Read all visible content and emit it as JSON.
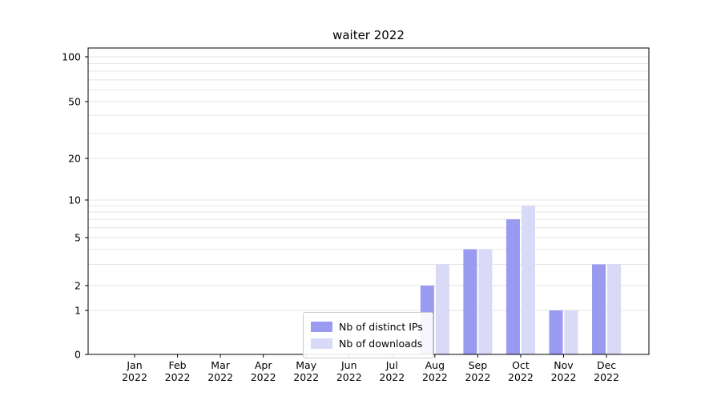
{
  "chart_data": {
    "type": "bar",
    "title": "waiter 2022",
    "categories": [
      "Jan",
      "Feb",
      "Mar",
      "Apr",
      "May",
      "Jun",
      "Jul",
      "Aug",
      "Sep",
      "Oct",
      "Nov",
      "Dec"
    ],
    "x_tick_second_line": "2022",
    "series": [
      {
        "name": "Nb of distinct IPs",
        "color": "#9a9af0",
        "values": [
          0,
          0,
          0,
          0,
          0,
          0,
          0,
          2,
          4,
          7,
          1,
          3
        ]
      },
      {
        "name": "Nb of downloads",
        "color": "#d9d9f8",
        "values": [
          0,
          0,
          0,
          0,
          0,
          0,
          0,
          3,
          4,
          9,
          1,
          3
        ]
      }
    ],
    "y_ticks": [
      0,
      1,
      2,
      5,
      10,
      20,
      50,
      100
    ],
    "y_scale": "symlog",
    "ylim": [
      0,
      110
    ],
    "grid_values": [
      1,
      2,
      3,
      4,
      5,
      6,
      7,
      8,
      9,
      10,
      20,
      30,
      40,
      50,
      60,
      70,
      80,
      90,
      100
    ],
    "grid": "on",
    "legend_position": "lower-center-inside",
    "grid_color": "#e5e5e5",
    "axis_color": "#000000"
  }
}
